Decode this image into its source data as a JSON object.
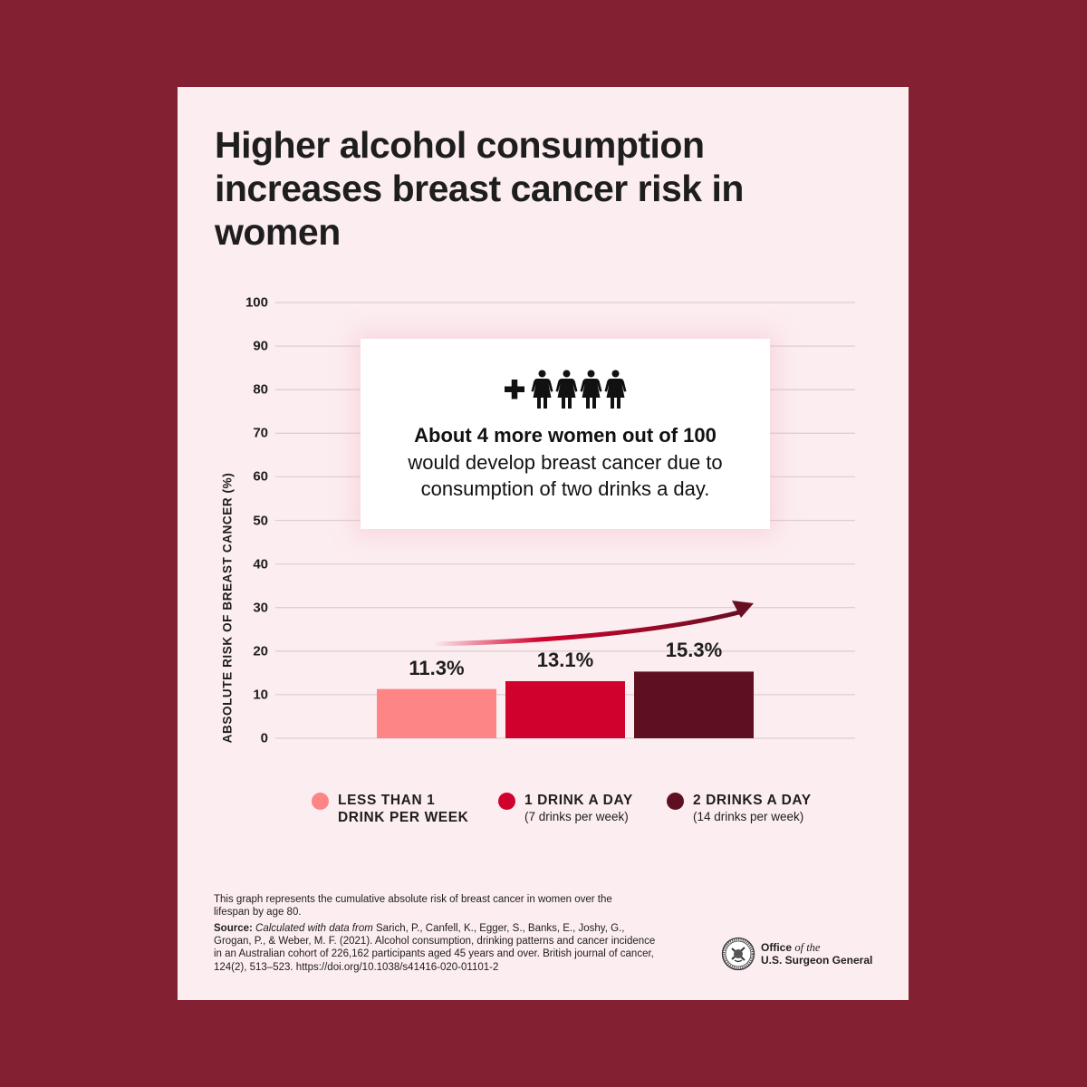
{
  "page": {
    "background_color": "#832133",
    "card_color": "#fcedf0",
    "title": "Higher alcohol consumption increases breast cancer risk in women"
  },
  "callout": {
    "icon_prefix": "plus-icon",
    "icon_person": "woman-icon",
    "person_count": 4,
    "bold_text": "About 4 more women out of 100",
    "body_line1": "would develop breast cancer due to",
    "body_line2": "consumption of two drinks a day."
  },
  "chart_data": {
    "type": "bar",
    "title": "Higher alcohol consumption increases breast cancer risk in women",
    "xlabel": "",
    "ylabel": "ABSOLUTE RISK OF BREAST CANCER (%)",
    "ylim": [
      0,
      100
    ],
    "yticks": [
      0,
      10,
      20,
      30,
      40,
      50,
      60,
      70,
      80,
      90,
      100
    ],
    "grid": true,
    "categories": [
      "Less than 1 drink per week",
      "1 drink a day",
      "2 drinks a day"
    ],
    "values": [
      11.3,
      13.1,
      15.3
    ],
    "value_labels": [
      "11.3%",
      "13.1%",
      "15.3%"
    ],
    "colors": [
      "#fd8585",
      "#d0022d",
      "#5e1020"
    ],
    "trend_arrow": "increasing",
    "legend_placement": "bottom",
    "legend": [
      {
        "title": "LESS THAN 1\nDRINK PER WEEK",
        "subtitle": "",
        "color": "#fd8585"
      },
      {
        "title": "1 DRINK A DAY",
        "subtitle": "(7 drinks per week)",
        "color": "#d0022d"
      },
      {
        "title": "2 DRINKS A DAY",
        "subtitle": "(14 drinks per week)",
        "color": "#5e1020"
      }
    ]
  },
  "footer": {
    "note": "This graph represents the cumulative absolute risk of breast cancer in women over the lifespan by age 80.",
    "source_label": "Source:",
    "source_italic": "Calculated with data from",
    "source_text": "Sarich, P., Canfell, K., Egger, S., Banks, E., Joshy, G., Grogan, P., & Weber, M. F. (2021). Alcohol consumption, drinking patterns and cancer incidence in an Australian cohort of 226,162 participants aged 45 years and over. British journal of cancer, 124(2), 513–523. https://doi.org/10.1038/s41416-020-01101-2",
    "logo_office": "Office",
    "logo_of_the": "of the",
    "logo_line2": "U.S. Surgeon General",
    "logo_icon": "seal-icon"
  }
}
